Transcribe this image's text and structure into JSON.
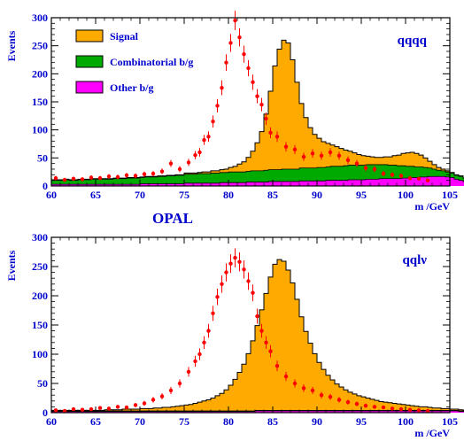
{
  "figure_label": "OPAL",
  "colors": {
    "signal": "#ffaa00",
    "combinatorial": "#00aa00",
    "other": "#ff00ff",
    "data_points": "#ff0000",
    "text": "#0000cc",
    "outline": "#000000"
  },
  "legend": [
    {
      "key": "signal",
      "label": "Signal"
    },
    {
      "key": "combinatorial",
      "label": "Combinatorial b/g"
    },
    {
      "key": "other",
      "label": "Other b/g"
    }
  ],
  "chart_data": [
    {
      "type": "bar",
      "title": "qqqq",
      "xlabel": "m /GeV",
      "ylabel": "Events",
      "xlim": [
        60,
        105
      ],
      "ylim": [
        0,
        300
      ],
      "xticks": [
        60,
        65,
        70,
        75,
        80,
        85,
        90,
        95,
        100,
        105
      ],
      "yticks": [
        0,
        50,
        100,
        150,
        200,
        250,
        300
      ],
      "stacked_histogram": true,
      "bin_start": 60,
      "bin_width": 0.5,
      "series": [
        {
          "name": "Other b/g",
          "key": "other",
          "values": [
            3,
            3,
            3,
            3,
            3,
            3,
            3,
            3,
            3,
            3,
            3,
            3,
            3,
            3,
            3,
            3,
            3,
            3,
            3,
            3,
            4,
            4,
            4,
            4,
            4,
            4,
            4,
            4,
            4,
            4,
            5,
            5,
            5,
            5,
            5,
            5,
            5,
            5,
            6,
            6,
            6,
            6,
            6,
            6,
            7,
            7,
            7,
            7,
            7,
            8,
            8,
            8,
            8,
            8,
            8,
            8,
            9,
            9,
            9,
            9,
            9,
            9,
            10,
            10,
            10,
            10,
            10,
            11,
            11,
            11,
            11,
            12,
            12,
            12,
            13,
            13,
            13,
            13,
            13,
            14,
            14,
            15,
            15,
            16,
            16,
            17,
            17,
            17,
            17,
            16,
            15,
            12,
            10,
            8,
            6,
            5,
            3,
            2
          ]
        },
        {
          "name": "Combinatorial b/g",
          "key": "combinatorial",
          "values": [
            7,
            7,
            7,
            8,
            7,
            7,
            8,
            8,
            8,
            9,
            9,
            9,
            9,
            9,
            10,
            10,
            10,
            11,
            11,
            11,
            11,
            12,
            12,
            12,
            13,
            13,
            14,
            14,
            15,
            15,
            16,
            16,
            16,
            17,
            17,
            17,
            18,
            18,
            18,
            18,
            19,
            19,
            19,
            19,
            19,
            20,
            20,
            20,
            21,
            21,
            21,
            21,
            22,
            22,
            22,
            22,
            23,
            23,
            23,
            23,
            24,
            24,
            24,
            25,
            25,
            25,
            26,
            26,
            26,
            26,
            26,
            26,
            26,
            26,
            25,
            25,
            24,
            24,
            23,
            22,
            21,
            20,
            19,
            18,
            17,
            15,
            13,
            11,
            10,
            9,
            8,
            7,
            7,
            6,
            6,
            5,
            4,
            3
          ]
        },
        {
          "name": "Signal",
          "key": "signal",
          "values": [
            1,
            1,
            1,
            1,
            1,
            1,
            1,
            1,
            1,
            1,
            1,
            1,
            1,
            1,
            1,
            1,
            1,
            1,
            1,
            1,
            1,
            1,
            1,
            1,
            1,
            1,
            1,
            1,
            1,
            1,
            2,
            2,
            2,
            2,
            3,
            3,
            4,
            4,
            5,
            6,
            8,
            10,
            14,
            18,
            25,
            35,
            50,
            70,
            100,
            140,
            185,
            215,
            230,
            225,
            195,
            155,
            115,
            90,
            72,
            60,
            52,
            46,
            42,
            38,
            35,
            32,
            28,
            25,
            22,
            19,
            17,
            15,
            14,
            13,
            13,
            14,
            15,
            17,
            19,
            22,
            24,
            25,
            24,
            21,
            17,
            12,
            8,
            5,
            3,
            2,
            1,
            1,
            1,
            0,
            0,
            0,
            0,
            0
          ]
        }
      ],
      "data_points": [
        {
          "x": 60.5,
          "y": 14
        },
        {
          "x": 61.5,
          "y": 11
        },
        {
          "x": 62.5,
          "y": 13
        },
        {
          "x": 63.5,
          "y": 12
        },
        {
          "x": 64.5,
          "y": 15
        },
        {
          "x": 65.5,
          "y": 14
        },
        {
          "x": 66.5,
          "y": 17
        },
        {
          "x": 67.5,
          "y": 16
        },
        {
          "x": 68.5,
          "y": 19
        },
        {
          "x": 69.5,
          "y": 18
        },
        {
          "x": 70.5,
          "y": 21
        },
        {
          "x": 71.5,
          "y": 22
        },
        {
          "x": 72.5,
          "y": 26
        },
        {
          "x": 73.5,
          "y": 40
        },
        {
          "x": 74.5,
          "y": 30
        },
        {
          "x": 75.5,
          "y": 42
        },
        {
          "x": 76.25,
          "y": 55
        },
        {
          "x": 76.75,
          "y": 60
        },
        {
          "x": 77.25,
          "y": 82
        },
        {
          "x": 77.75,
          "y": 88
        },
        {
          "x": 78.25,
          "y": 115
        },
        {
          "x": 78.75,
          "y": 143
        },
        {
          "x": 79.25,
          "y": 175
        },
        {
          "x": 79.75,
          "y": 220
        },
        {
          "x": 80.25,
          "y": 255
        },
        {
          "x": 80.75,
          "y": 295
        },
        {
          "x": 81.25,
          "y": 265
        },
        {
          "x": 81.75,
          "y": 235
        },
        {
          "x": 82.25,
          "y": 210
        },
        {
          "x": 82.75,
          "y": 185
        },
        {
          "x": 83.25,
          "y": 160
        },
        {
          "x": 83.75,
          "y": 145
        },
        {
          "x": 84.25,
          "y": 120
        },
        {
          "x": 84.75,
          "y": 95
        },
        {
          "x": 85.5,
          "y": 88
        },
        {
          "x": 86.5,
          "y": 70
        },
        {
          "x": 87.5,
          "y": 65
        },
        {
          "x": 88.5,
          "y": 52
        },
        {
          "x": 89.5,
          "y": 58
        },
        {
          "x": 90.5,
          "y": 54
        },
        {
          "x": 91.5,
          "y": 60
        },
        {
          "x": 92.5,
          "y": 54
        },
        {
          "x": 93.5,
          "y": 46
        },
        {
          "x": 94.5,
          "y": 40
        },
        {
          "x": 95.5,
          "y": 32
        },
        {
          "x": 96.5,
          "y": 30
        },
        {
          "x": 97.5,
          "y": 22
        },
        {
          "x": 98.5,
          "y": 20
        },
        {
          "x": 99.5,
          "y": 18
        },
        {
          "x": 100.5,
          "y": 14
        },
        {
          "x": 101.5,
          "y": 13
        },
        {
          "x": 102.5,
          "y": 10
        }
      ]
    },
    {
      "type": "bar",
      "title": "qqlν",
      "xlabel": "m /GeV",
      "ylabel": "Events",
      "xlim": [
        60,
        105
      ],
      "ylim": [
        0,
        300
      ],
      "xticks": [
        60,
        65,
        70,
        75,
        80,
        85,
        90,
        95,
        100,
        105
      ],
      "yticks": [
        0,
        50,
        100,
        150,
        200,
        250,
        300
      ],
      "stacked_histogram": true,
      "bin_start": 60,
      "bin_width": 0.5,
      "series": [
        {
          "name": "Other b/g",
          "key": "other",
          "values": [
            2,
            2,
            2,
            2,
            2,
            2,
            2,
            2,
            2,
            2,
            2,
            2,
            2,
            2,
            2,
            2,
            2,
            2,
            2,
            2,
            2,
            2,
            2,
            2,
            2,
            2,
            2,
            2,
            2,
            2,
            2,
            2,
            2,
            2,
            2,
            2,
            2,
            2,
            2,
            2,
            2,
            2,
            2,
            2,
            2,
            2,
            3,
            3,
            3,
            3,
            3,
            3,
            3,
            3,
            3,
            3,
            3,
            3,
            3,
            3,
            3,
            3,
            3,
            3,
            3,
            3,
            3,
            3,
            3,
            3,
            3,
            3,
            3,
            3,
            3,
            3,
            3,
            3,
            3,
            3,
            3,
            3,
            3,
            3,
            3,
            3,
            3,
            3,
            3,
            3,
            3,
            3,
            2,
            2,
            2,
            2,
            2,
            2
          ]
        },
        {
          "name": "Combinatorial b/g",
          "key": "combinatorial",
          "values": [
            1,
            1,
            1,
            1,
            1,
            1,
            1,
            1,
            1,
            1,
            1,
            1,
            1,
            1,
            1,
            1,
            1,
            1,
            1,
            1,
            1,
            1,
            1,
            1,
            1,
            1,
            1,
            1,
            1,
            1,
            1,
            1,
            1,
            1,
            1,
            1,
            1,
            1,
            1,
            1,
            1,
            1,
            1,
            1,
            1,
            1,
            1,
            1,
            1,
            1,
            1,
            1,
            1,
            1,
            1,
            1,
            1,
            1,
            1,
            1,
            1,
            1,
            1,
            1,
            1,
            1,
            1,
            1,
            1,
            1,
            1,
            1,
            1,
            1,
            1,
            1,
            1,
            1,
            1,
            1,
            1,
            1,
            1,
            1,
            1,
            1,
            1,
            1,
            1,
            1,
            1,
            1,
            1,
            1,
            1,
            1,
            1,
            1
          ]
        },
        {
          "name": "Signal",
          "key": "signal",
          "values": [
            1,
            1,
            1,
            1,
            1,
            1,
            1,
            1,
            1,
            1,
            1,
            1,
            2,
            2,
            2,
            2,
            3,
            3,
            3,
            3,
            4,
            4,
            4,
            5,
            5,
            6,
            6,
            7,
            8,
            9,
            10,
            11,
            13,
            15,
            17,
            19,
            22,
            26,
            30,
            36,
            44,
            54,
            66,
            80,
            98,
            120,
            145,
            172,
            200,
            228,
            250,
            258,
            255,
            240,
            218,
            190,
            160,
            135,
            115,
            97,
            82,
            70,
            60,
            52,
            45,
            40,
            35,
            31,
            28,
            25,
            23,
            21,
            19,
            17,
            15,
            14,
            13,
            12,
            11,
            10,
            9,
            8,
            7,
            6,
            6,
            5,
            4,
            4,
            3,
            3,
            2,
            2,
            2,
            1,
            1,
            1,
            1,
            0
          ]
        }
      ],
      "data_points": [
        {
          "x": 60.5,
          "y": 4
        },
        {
          "x": 61.5,
          "y": 3
        },
        {
          "x": 62.5,
          "y": 6
        },
        {
          "x": 63.5,
          "y": 5
        },
        {
          "x": 64.5,
          "y": 6
        },
        {
          "x": 65.5,
          "y": 8
        },
        {
          "x": 66.5,
          "y": 7
        },
        {
          "x": 67.5,
          "y": 10
        },
        {
          "x": 68.5,
          "y": 9
        },
        {
          "x": 69.5,
          "y": 13
        },
        {
          "x": 70.5,
          "y": 16
        },
        {
          "x": 71.5,
          "y": 22
        },
        {
          "x": 72.5,
          "y": 28
        },
        {
          "x": 73.5,
          "y": 38
        },
        {
          "x": 74.5,
          "y": 50
        },
        {
          "x": 75.5,
          "y": 70
        },
        {
          "x": 76.25,
          "y": 88
        },
        {
          "x": 76.75,
          "y": 100
        },
        {
          "x": 77.25,
          "y": 120
        },
        {
          "x": 77.75,
          "y": 140
        },
        {
          "x": 78.25,
          "y": 170
        },
        {
          "x": 78.75,
          "y": 198
        },
        {
          "x": 79.25,
          "y": 220
        },
        {
          "x": 79.75,
          "y": 240
        },
        {
          "x": 80.25,
          "y": 255
        },
        {
          "x": 80.75,
          "y": 265
        },
        {
          "x": 81.25,
          "y": 258
        },
        {
          "x": 81.75,
          "y": 245
        },
        {
          "x": 82.25,
          "y": 225
        },
        {
          "x": 82.75,
          "y": 205
        },
        {
          "x": 83.25,
          "y": 165
        },
        {
          "x": 83.75,
          "y": 140
        },
        {
          "x": 84.25,
          "y": 120
        },
        {
          "x": 84.75,
          "y": 105
        },
        {
          "x": 85.5,
          "y": 80
        },
        {
          "x": 86.5,
          "y": 62
        },
        {
          "x": 87.5,
          "y": 50
        },
        {
          "x": 88.5,
          "y": 42
        },
        {
          "x": 89.5,
          "y": 38
        },
        {
          "x": 90.5,
          "y": 30
        },
        {
          "x": 91.5,
          "y": 27
        },
        {
          "x": 92.5,
          "y": 22
        },
        {
          "x": 93.5,
          "y": 18
        },
        {
          "x": 94.5,
          "y": 15
        },
        {
          "x": 95.5,
          "y": 12
        },
        {
          "x": 96.5,
          "y": 10
        },
        {
          "x": 97.5,
          "y": 9
        },
        {
          "x": 98.5,
          "y": 7
        },
        {
          "x": 99.5,
          "y": 6
        },
        {
          "x": 100.5,
          "y": 5
        },
        {
          "x": 101.5,
          "y": 4
        },
        {
          "x": 102.5,
          "y": 3
        }
      ]
    }
  ]
}
